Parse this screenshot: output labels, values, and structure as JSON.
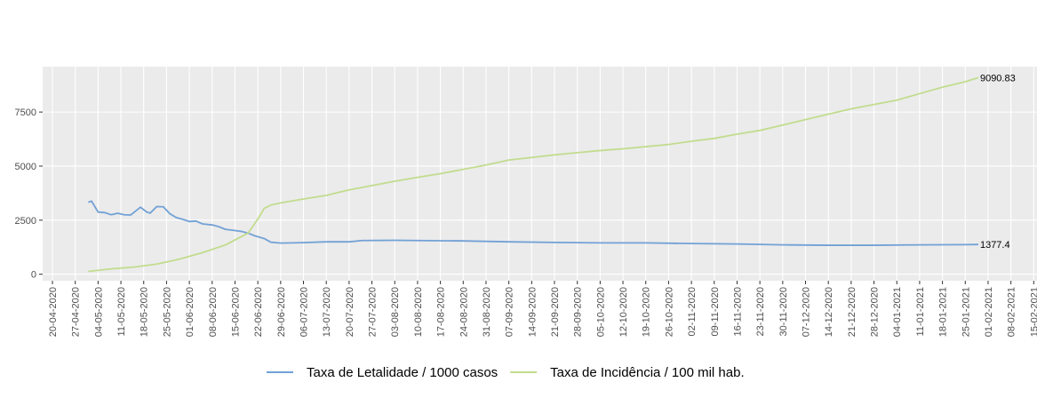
{
  "chart_data": {
    "type": "line",
    "xlim": [
      "2020-04-17",
      "2021-02-16"
    ],
    "xticks": [
      {
        "value": "2020-04-20",
        "label": "20-04-2020"
      },
      {
        "value": "2020-04-27",
        "label": "27-04-2020"
      },
      {
        "value": "2020-05-04",
        "label": "04-05-2020"
      },
      {
        "value": "2020-05-11",
        "label": "11-05-2020"
      },
      {
        "value": "2020-05-18",
        "label": "18-05-2020"
      },
      {
        "value": "2020-05-25",
        "label": "25-05-2020"
      },
      {
        "value": "2020-06-01",
        "label": "01-06-2020"
      },
      {
        "value": "2020-06-08",
        "label": "08-06-2020"
      },
      {
        "value": "2020-06-15",
        "label": "15-06-2020"
      },
      {
        "value": "2020-06-22",
        "label": "22-06-2020"
      },
      {
        "value": "2020-06-29",
        "label": "29-06-2020"
      },
      {
        "value": "2020-07-06",
        "label": "06-07-2020"
      },
      {
        "value": "2020-07-13",
        "label": "13-07-2020"
      },
      {
        "value": "2020-07-20",
        "label": "20-07-2020"
      },
      {
        "value": "2020-07-27",
        "label": "27-07-2020"
      },
      {
        "value": "2020-08-03",
        "label": "03-08-2020"
      },
      {
        "value": "2020-08-10",
        "label": "10-08-2020"
      },
      {
        "value": "2020-08-17",
        "label": "17-08-2020"
      },
      {
        "value": "2020-08-24",
        "label": "24-08-2020"
      },
      {
        "value": "2020-08-31",
        "label": "31-08-2020"
      },
      {
        "value": "2020-09-07",
        "label": "07-09-2020"
      },
      {
        "value": "2020-09-14",
        "label": "14-09-2020"
      },
      {
        "value": "2020-09-21",
        "label": "21-09-2020"
      },
      {
        "value": "2020-09-28",
        "label": "28-09-2020"
      },
      {
        "value": "2020-10-05",
        "label": "05-10-2020"
      },
      {
        "value": "2020-10-12",
        "label": "12-10-2020"
      },
      {
        "value": "2020-10-19",
        "label": "19-10-2020"
      },
      {
        "value": "2020-10-26",
        "label": "26-10-2020"
      },
      {
        "value": "2020-11-02",
        "label": "02-11-2020"
      },
      {
        "value": "2020-11-09",
        "label": "09-11-2020"
      },
      {
        "value": "2020-11-16",
        "label": "16-11-2020"
      },
      {
        "value": "2020-11-23",
        "label": "23-11-2020"
      },
      {
        "value": "2020-11-30",
        "label": "30-11-2020"
      },
      {
        "value": "2020-12-07",
        "label": "07-12-2020"
      },
      {
        "value": "2020-12-14",
        "label": "14-12-2020"
      },
      {
        "value": "2020-12-21",
        "label": "21-12-2020"
      },
      {
        "value": "2020-12-28",
        "label": "28-12-2020"
      },
      {
        "value": "2021-01-04",
        "label": "04-01-2021"
      },
      {
        "value": "2021-01-11",
        "label": "11-01-2021"
      },
      {
        "value": "2021-01-18",
        "label": "18-01-2021"
      },
      {
        "value": "2021-01-25",
        "label": "25-01-2021"
      },
      {
        "value": "2021-02-01",
        "label": "01-02-2021"
      },
      {
        "value": "2021-02-08",
        "label": "08-02-2021"
      },
      {
        "value": "2021-02-15",
        "label": "15-02-2021"
      }
    ],
    "ylim": [
      -300,
      9600
    ],
    "yticks": [
      0,
      2500,
      5000,
      7500
    ],
    "grid": true,
    "legend": "bottom",
    "series": [
      {
        "name": "Taxa de Letalidade / 1000 casos",
        "color": "#72a1d6",
        "x": [
          "2020-05-01",
          "2020-05-02",
          "2020-05-04",
          "2020-05-06",
          "2020-05-08",
          "2020-05-10",
          "2020-05-12",
          "2020-05-14",
          "2020-05-17",
          "2020-05-19",
          "2020-05-20",
          "2020-05-22",
          "2020-05-24",
          "2020-05-26",
          "2020-05-28",
          "2020-05-30",
          "2020-06-01",
          "2020-06-03",
          "2020-06-05",
          "2020-06-08",
          "2020-06-10",
          "2020-06-12",
          "2020-06-15",
          "2020-06-17",
          "2020-06-19",
          "2020-06-21",
          "2020-06-24",
          "2020-06-26",
          "2020-06-29",
          "2020-07-06",
          "2020-07-13",
          "2020-07-20",
          "2020-07-24",
          "2020-08-03",
          "2020-08-10",
          "2020-08-24",
          "2020-09-07",
          "2020-09-21",
          "2020-10-05",
          "2020-10-19",
          "2020-11-02",
          "2020-11-16",
          "2020-11-30",
          "2020-12-14",
          "2020-12-28",
          "2021-01-11",
          "2021-01-25",
          "2021-01-29"
        ],
        "values": [
          3330,
          3380,
          2880,
          2850,
          2750,
          2820,
          2750,
          2740,
          3100,
          2870,
          2830,
          3130,
          3120,
          2800,
          2620,
          2540,
          2440,
          2460,
          2330,
          2280,
          2200,
          2080,
          2020,
          1980,
          1900,
          1780,
          1650,
          1480,
          1440,
          1460,
          1500,
          1500,
          1560,
          1570,
          1560,
          1540,
          1500,
          1470,
          1450,
          1450,
          1420,
          1400,
          1360,
          1340,
          1340,
          1360,
          1370,
          1377.4
        ]
      },
      {
        "name": "Taxa de Incidência / 100 mil hab.",
        "color": "#c2dc8e",
        "x": [
          "2020-05-01",
          "2020-05-08",
          "2020-05-15",
          "2020-05-22",
          "2020-05-29",
          "2020-06-05",
          "2020-06-12",
          "2020-06-19",
          "2020-06-22",
          "2020-06-24",
          "2020-06-26",
          "2020-06-29",
          "2020-07-06",
          "2020-07-13",
          "2020-07-20",
          "2020-07-27",
          "2020-08-03",
          "2020-08-10",
          "2020-08-17",
          "2020-08-24",
          "2020-08-31",
          "2020-09-07",
          "2020-09-14",
          "2020-09-21",
          "2020-09-28",
          "2020-10-05",
          "2020-10-12",
          "2020-10-19",
          "2020-10-26",
          "2020-11-02",
          "2020-11-09",
          "2020-11-16",
          "2020-11-23",
          "2020-11-30",
          "2020-12-07",
          "2020-12-14",
          "2020-12-21",
          "2020-12-28",
          "2021-01-04",
          "2021-01-11",
          "2021-01-18",
          "2021-01-25",
          "2021-01-29"
        ],
        "values": [
          130,
          250,
          330,
          470,
          700,
          1000,
          1350,
          1900,
          2550,
          3050,
          3200,
          3300,
          3480,
          3650,
          3900,
          4100,
          4300,
          4480,
          4650,
          4850,
          5050,
          5280,
          5400,
          5520,
          5620,
          5720,
          5800,
          5900,
          6000,
          6150,
          6280,
          6480,
          6650,
          6900,
          7150,
          7400,
          7650,
          7850,
          8050,
          8350,
          8650,
          8900,
          9090.83
        ]
      }
    ]
  }
}
